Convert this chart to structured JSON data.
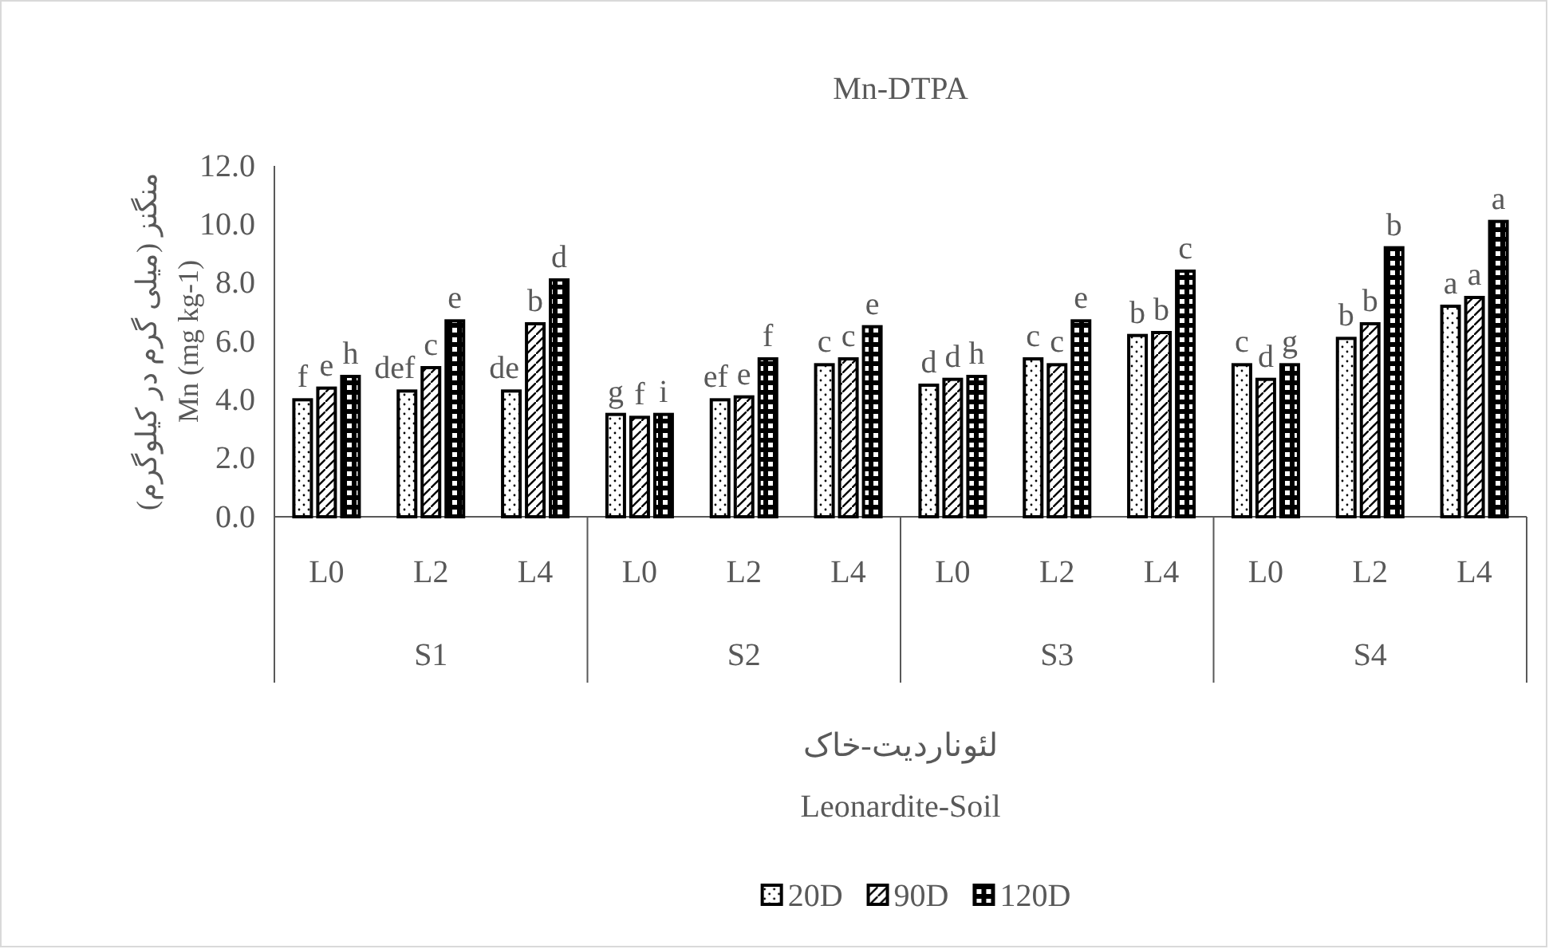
{
  "chart_data": {
    "type": "bar",
    "title": "Mn-DTPA",
    "xlabel": "لئوناردیت-خاک\nLeonardite-Soil",
    "ylabel": "منگنز (میلی گرم در کیلوگرم)\nMn (mg kg-1)",
    "categories": [
      "L0",
      "L2",
      "L4",
      "L0",
      "L2",
      "L4",
      "L0",
      "L2",
      "L4",
      "L0",
      "L2",
      "L4"
    ],
    "annotations": [
      "S1",
      "S2",
      "S3",
      "S4"
    ],
    "ylim": [
      0,
      12
    ],
    "yticks": [
      {
        "value": 0,
        "label": "0.0"
      },
      {
        "value": 2,
        "label": "2.0"
      },
      {
        "value": 4,
        "label": "4.0"
      },
      {
        "value": 6,
        "label": "6.0"
      },
      {
        "value": 8,
        "label": "8.0"
      },
      {
        "value": 10,
        "label": "10.0"
      },
      {
        "value": 12,
        "label": "12.0"
      }
    ],
    "grid": false,
    "legend": "bottom",
    "series": [
      {
        "name": "20D",
        "color": "#000000",
        "values": [
          4.0,
          4.3,
          4.3,
          3.5,
          4.0,
          5.2,
          4.5,
          5.4,
          6.2,
          5.2,
          6.1,
          7.2
        ],
        "value_labels": [
          "f",
          "def",
          "de",
          "g",
          "ef",
          "c",
          "d",
          "c",
          "b",
          "c",
          "b",
          "a"
        ]
      },
      {
        "name": "90D",
        "color": "#000000",
        "values": [
          4.4,
          5.1,
          6.6,
          3.4,
          4.1,
          5.4,
          4.7,
          5.2,
          6.3,
          4.7,
          6.6,
          7.5
        ],
        "value_labels": [
          "e",
          "c",
          "b",
          "f",
          "e",
          "c",
          "d",
          "c",
          "b",
          "d",
          "b",
          "a"
        ]
      },
      {
        "name": "120D",
        "color": "#000000",
        "values": [
          4.8,
          6.7,
          8.1,
          3.5,
          5.4,
          6.5,
          4.8,
          6.7,
          8.4,
          5.2,
          9.2,
          10.1
        ],
        "value_labels": [
          "h",
          "e",
          "d",
          "i",
          "f",
          "e",
          "h",
          "e",
          "c",
          "g",
          "b",
          "a"
        ]
      }
    ]
  }
}
